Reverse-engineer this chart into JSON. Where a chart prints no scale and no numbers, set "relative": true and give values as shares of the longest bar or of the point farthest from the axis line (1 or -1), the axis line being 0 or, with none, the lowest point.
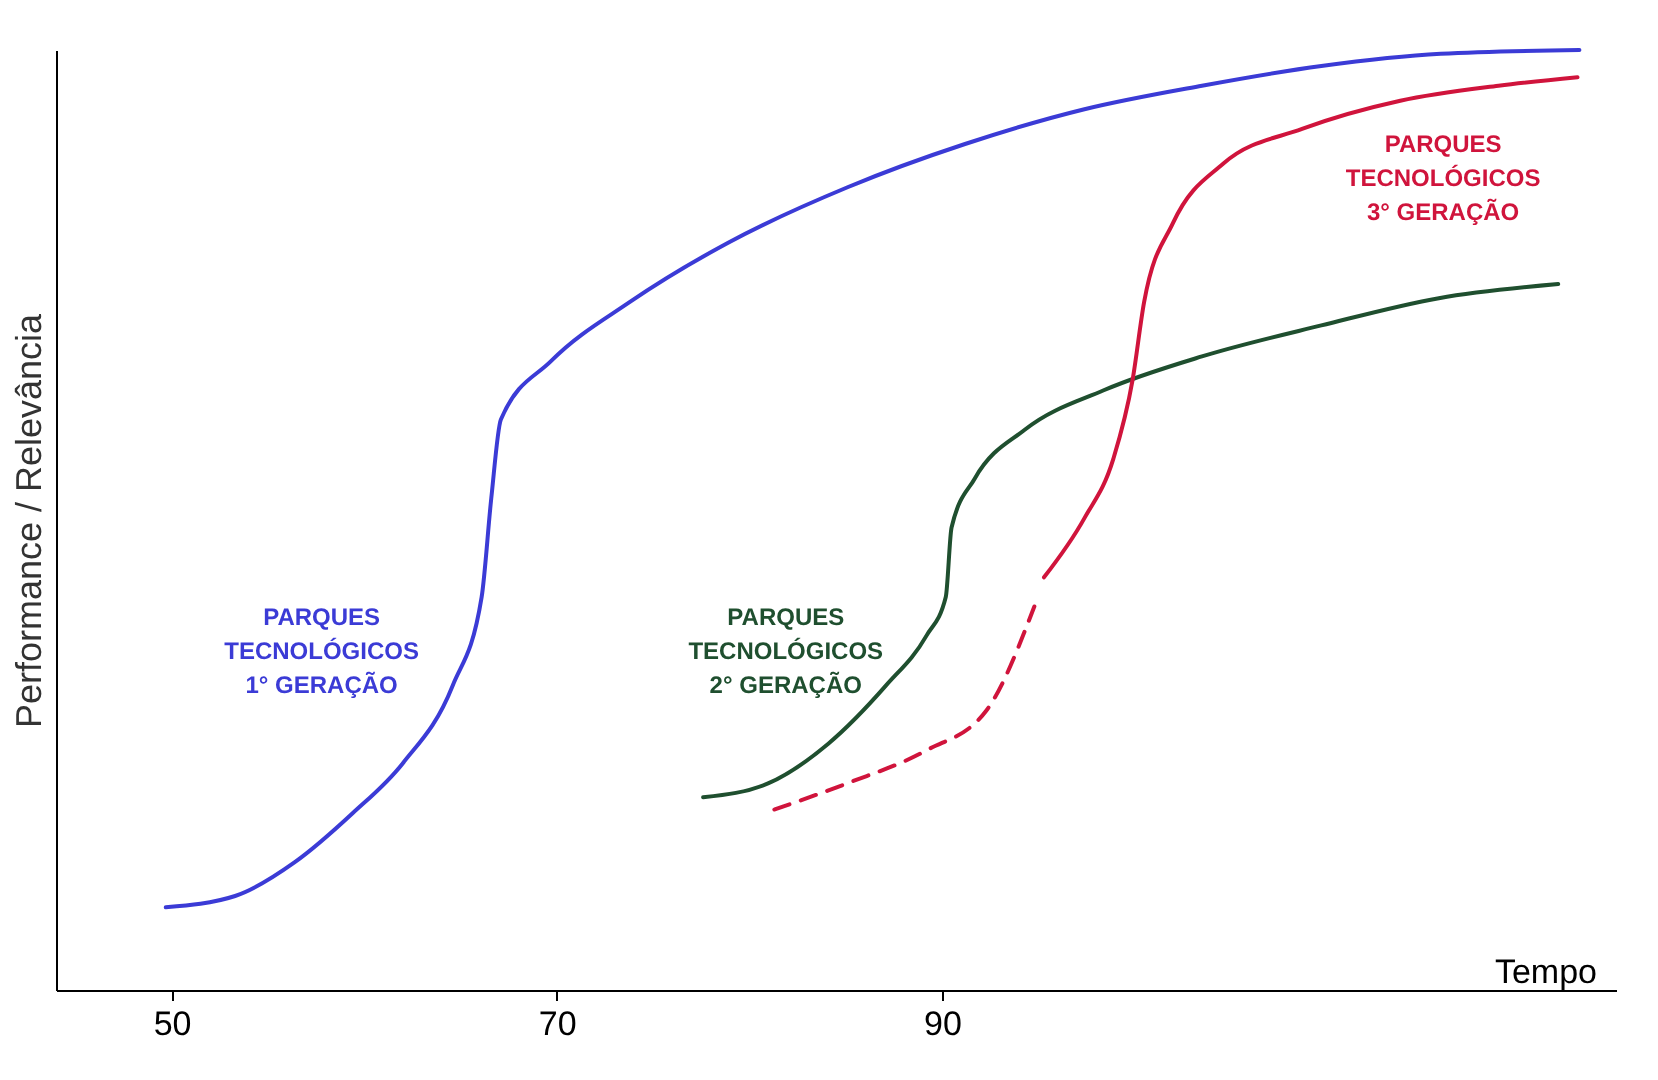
{
  "chart_data": {
    "type": "line",
    "relative": true,
    "xlabel": "Tempo",
    "ylabel": "Performance / Relevância",
    "xlim": [
      44,
      125
    ],
    "xticks": [
      50,
      70,
      90
    ],
    "grid": false,
    "marker": "none",
    "series": [
      {
        "name": "PARQUES TECNOLÓGICOS 1° GERAÇÃO",
        "color": "#3b3bd6",
        "x": [
          49.7,
          53.3,
          56.4,
          59.4,
          62.0,
          64.6,
          66.1,
          66.6,
          67.1,
          69.7,
          73.8,
          78.9,
          85.1,
          91.2,
          97.4,
          103.5,
          109.7,
          115.9,
          123.1
        ],
        "values": [
          0.088,
          0.1,
          0.136,
          0.188,
          0.241,
          0.324,
          0.418,
          0.523,
          0.607,
          0.669,
          0.732,
          0.795,
          0.854,
          0.9,
          0.937,
          0.962,
          0.983,
          0.996,
          1.0
        ]
      },
      {
        "name": "PARQUES TECNOLÓGICOS 2° GERAÇÃO",
        "color": "#1f4f2f",
        "x": [
          77.6,
          81.0,
          84.1,
          87.1,
          89.2,
          90.2,
          90.5,
          91.7,
          94.3,
          98.4,
          103.5,
          109.7,
          115.8,
          122.0
        ],
        "values": [
          0.205,
          0.22,
          0.262,
          0.324,
          0.377,
          0.418,
          0.492,
          0.544,
          0.596,
          0.638,
          0.674,
          0.707,
          0.736,
          0.751
        ]
      },
      {
        "name": "PARQUES TECNOLÓGICOS 3° GERAÇÃO",
        "color": "#d0143c",
        "x": [
          95.3,
          97.4,
          98.9,
          99.9,
          100.5,
          102.0,
          104.6,
          108.7,
          113.8,
          118.9,
          123.0
        ],
        "values": [
          0.439,
          0.502,
          0.565,
          0.649,
          0.732,
          0.816,
          0.879,
          0.916,
          0.946,
          0.962,
          0.971
        ]
      },
      {
        "color": "#d0143c",
        "line_style": "dashed",
        "x": [
          81.3,
          85.1,
          89.2,
          92.3,
          94.8
        ],
        "values": [
          0.192,
          0.22,
          0.255,
          0.297,
          0.408
        ]
      }
    ]
  }
}
